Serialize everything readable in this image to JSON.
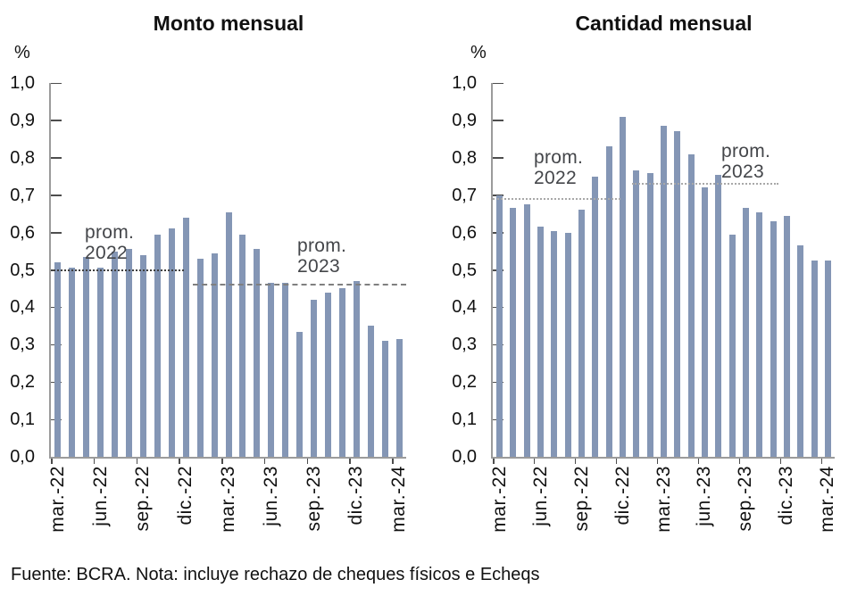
{
  "footer": "Fuente: BCRA. Nota: incluye rechazo de cheques físicos e Echeqs",
  "colors": {
    "bar": "#8496B5",
    "axis_line": "#9B9B9B",
    "tick": "#4D4D4D",
    "annotation_text": "#44464A"
  },
  "chart_data": [
    {
      "type": "bar",
      "title": "Monto mensual",
      "ylabel": "%",
      "ylim": [
        0.0,
        1.0
      ],
      "ytick_labels": [
        "1,0",
        "0,9",
        "0,8",
        "0,7",
        "0,6",
        "0,5",
        "0,4",
        "0,3",
        "0,2",
        "0,1",
        "0,0"
      ],
      "n_bars": 25,
      "x_tick_labels": [
        "mar.-22",
        "jun.-22",
        "sep.-22",
        "dic.-22",
        "mar.-23",
        "jun.-23",
        "sep.-23",
        "dic.-23",
        "mar.-24"
      ],
      "x_tick_positions": [
        0,
        3,
        6,
        9,
        12,
        15,
        18,
        21,
        24
      ],
      "values": [
        0.52,
        0.505,
        0.535,
        0.505,
        0.55,
        0.555,
        0.54,
        0.595,
        0.61,
        0.64,
        0.53,
        0.545,
        0.655,
        0.595,
        0.555,
        0.465,
        0.465,
        0.335,
        0.42,
        0.44,
        0.45,
        0.47,
        0.35,
        0.31,
        0.315
      ],
      "grid": false,
      "annotations": [
        {
          "label_lines": [
            "prom.",
            "2022"
          ],
          "value": 0.5,
          "line_style": "dotted",
          "line_color": "#3F3F3F",
          "span_frac": [
            0.0,
            0.375
          ]
        },
        {
          "label_lines": [
            "prom.",
            "2023"
          ],
          "value": 0.46,
          "line_style": "dashed",
          "line_color": "#7F7F7F",
          "span_frac": [
            0.4,
            1.0
          ]
        }
      ]
    },
    {
      "type": "bar",
      "title": "Cantidad mensual",
      "ylabel": "%",
      "ylim": [
        0.0,
        1.0
      ],
      "ytick_labels": [
        "1,0",
        "0,9",
        "0,8",
        "0,7",
        "0,6",
        "0,5",
        "0,4",
        "0,3",
        "0,2",
        "0,1",
        "0,0"
      ],
      "n_bars": 25,
      "x_tick_labels": [
        "mar.-22",
        "jun.-22",
        "sep.-22",
        "dic.-22",
        "mar.-23",
        "jun.-23",
        "sep.-23",
        "dic.-23",
        "mar.-24"
      ],
      "x_tick_positions": [
        0,
        3,
        6,
        9,
        12,
        15,
        18,
        21,
        24
      ],
      "values": [
        0.7,
        0.665,
        0.675,
        0.615,
        0.605,
        0.6,
        0.66,
        0.75,
        0.83,
        0.91,
        0.765,
        0.76,
        0.885,
        0.87,
        0.81,
        0.72,
        0.755,
        0.595,
        0.665,
        0.655,
        0.63,
        0.645,
        0.565,
        0.525,
        0.525
      ],
      "grid": false,
      "annotations": [
        {
          "label_lines": [
            "prom.",
            "2022"
          ],
          "value": 0.69,
          "line_style": "dotted",
          "line_color": "#A8A8A8",
          "span_frac": [
            0.0,
            0.373
          ]
        },
        {
          "label_lines": [
            "prom.",
            "2023"
          ],
          "value": 0.73,
          "line_style": "dotted",
          "line_color": "#A8A8A8",
          "span_frac": [
            0.407,
            0.835
          ]
        }
      ]
    }
  ]
}
